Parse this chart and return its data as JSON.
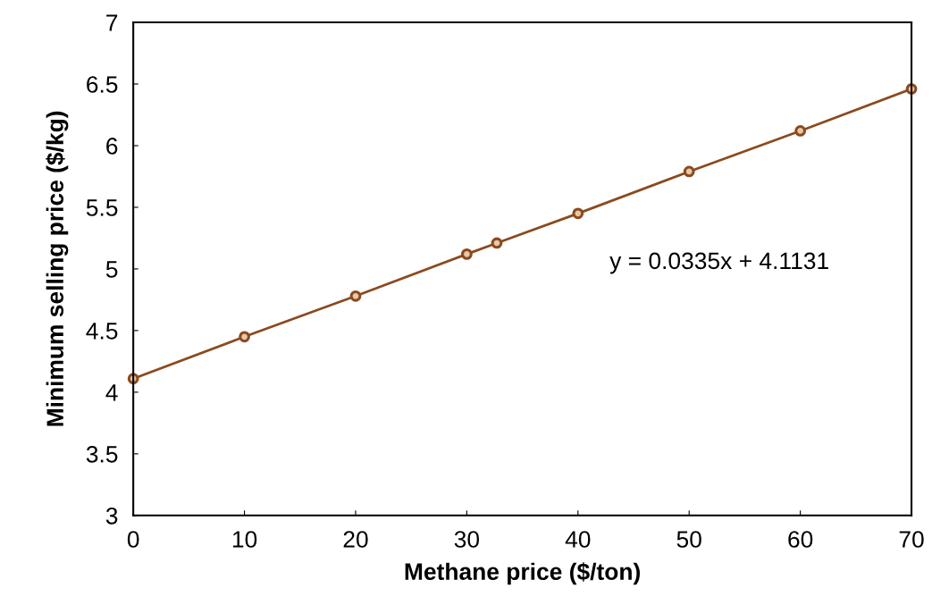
{
  "chart_data": {
    "type": "line",
    "xlabel": "Methane price ($/ton)",
    "ylabel": "Minimum selling price ($/kg)",
    "x": [
      0,
      10,
      20,
      30,
      32.7,
      40,
      50,
      60,
      70
    ],
    "series": [
      {
        "color": "#8b4a1f",
        "values": [
          4.11,
          4.45,
          4.78,
          5.12,
          5.21,
          5.45,
          5.79,
          6.12,
          6.46
        ]
      }
    ],
    "xlim": [
      0,
      70
    ],
    "xticks": [
      0,
      10,
      20,
      30,
      40,
      50,
      60,
      70
    ],
    "ylim": [
      3,
      7
    ],
    "yticks": [
      3,
      3.5,
      4,
      4.5,
      5,
      5.5,
      6,
      6.5,
      7
    ],
    "marker": "circle",
    "line_style": "solid",
    "grid": false,
    "legend": false,
    "annotations": [
      "y = 0.0335x + 4.1131"
    ]
  }
}
